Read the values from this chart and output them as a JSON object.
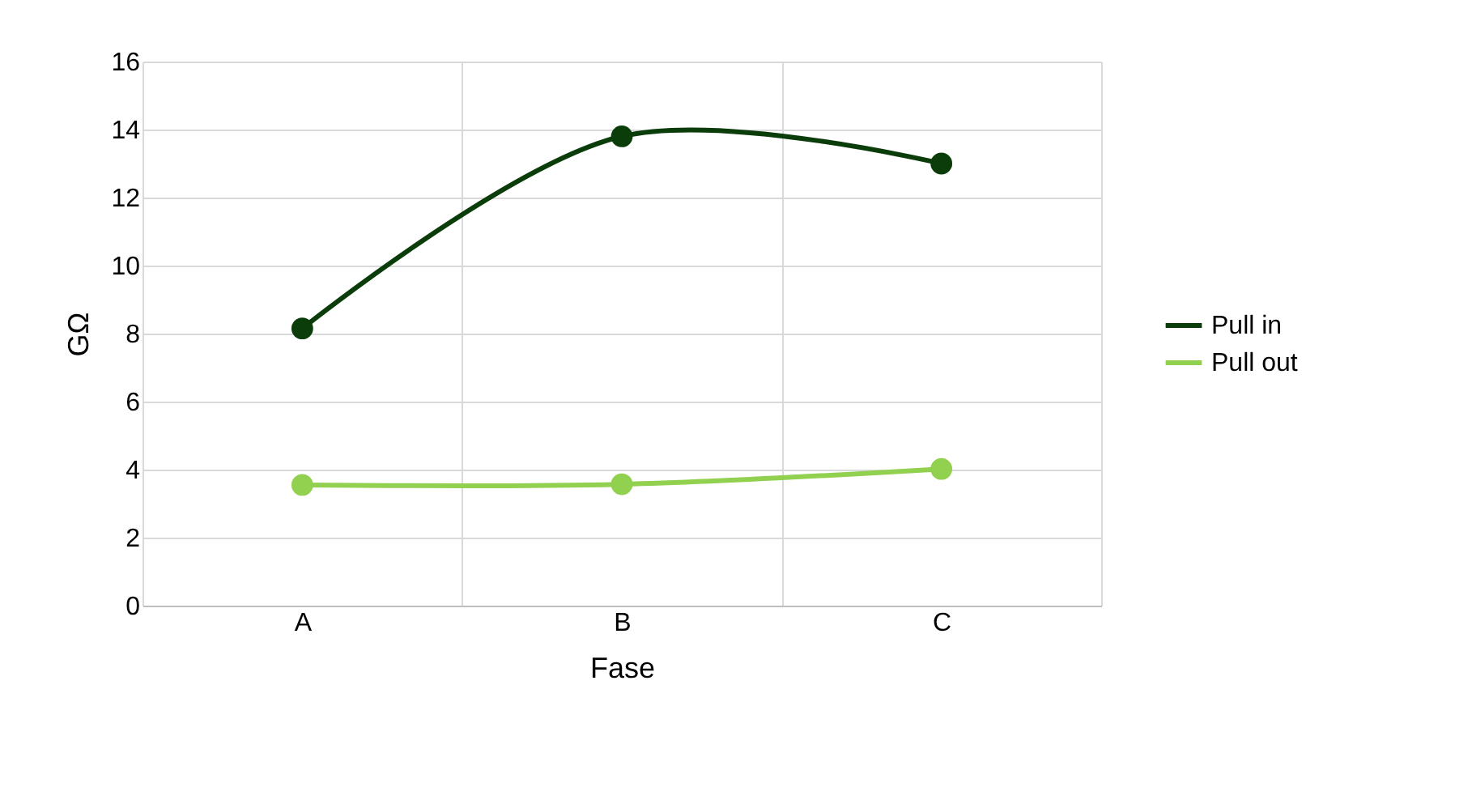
{
  "chart_data": {
    "type": "line",
    "xlabel": "Fase",
    "ylabel": "GΩ",
    "categories": [
      "A",
      "B",
      "C"
    ],
    "series": [
      {
        "name": "Pull in",
        "color": "#0b3d0b",
        "values": [
          8.15,
          13.8,
          13.0
        ]
      },
      {
        "name": "Pull out",
        "color": "#92d050",
        "values": [
          3.55,
          3.57,
          4.02
        ]
      }
    ],
    "ylim": [
      0,
      16
    ],
    "yticks": [
      0,
      2,
      4,
      6,
      8,
      10,
      12,
      14,
      16
    ],
    "grid": true,
    "legend": "right",
    "marker": "circle",
    "line_style": "solid"
  }
}
